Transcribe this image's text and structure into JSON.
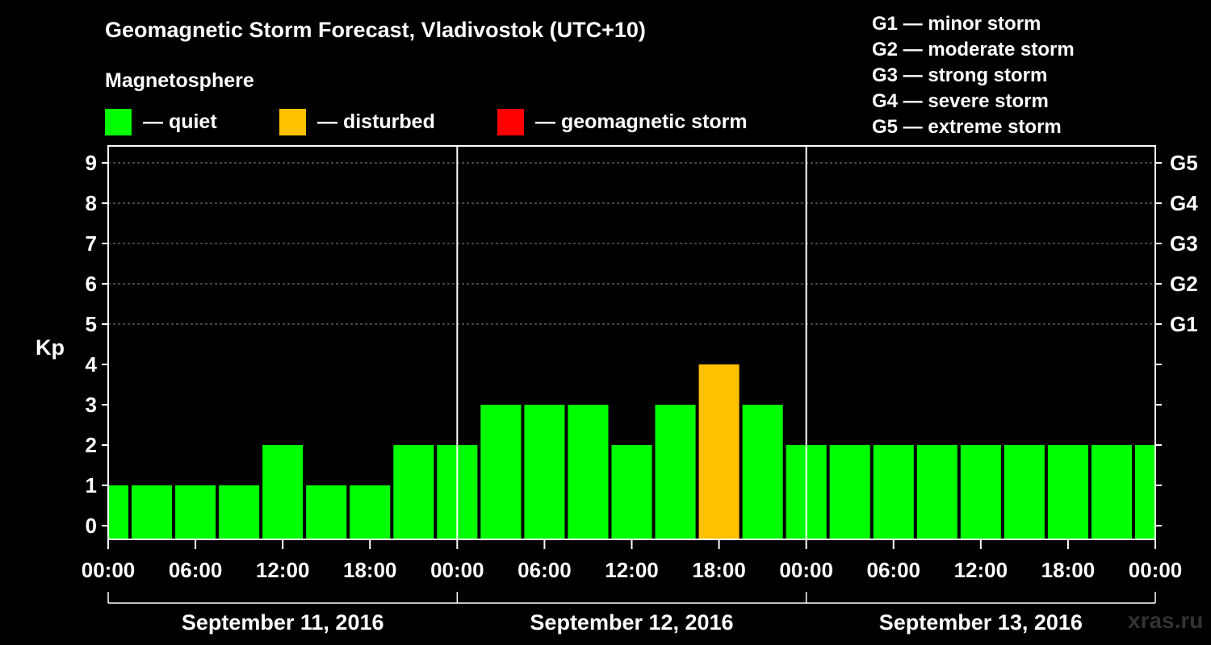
{
  "title": "Geomagnetic Storm Forecast, Vladivostok (UTC+10)",
  "subtitle": "Magnetosphere",
  "legend": [
    {
      "label": "— quiet",
      "color": "#00ff00"
    },
    {
      "label": "— disturbed",
      "color": "#ffc000"
    },
    {
      "label": "— geomagnetic storm",
      "color": "#ff0000"
    }
  ],
  "g_scale": [
    "G1 — minor storm",
    "G2 — moderate storm",
    "G3 — strong storm",
    "G4 — severe storm",
    "G5 — extreme storm"
  ],
  "watermark": "xras.ru",
  "chart_data": {
    "type": "bar",
    "ylabel": "Kp",
    "ylim": [
      0,
      9
    ],
    "yticks": [
      "0",
      "1",
      "2",
      "3",
      "4",
      "5",
      "6",
      "7",
      "8",
      "9"
    ],
    "right_ticks": [
      "G1",
      "G2",
      "G3",
      "G4",
      "G5"
    ],
    "x_tick_labels": [
      "00:00",
      "06:00",
      "12:00",
      "18:00",
      "00:00",
      "06:00",
      "12:00",
      "18:00",
      "00:00",
      "06:00",
      "12:00",
      "18:00",
      "00:00"
    ],
    "dates": [
      "September 11, 2016",
      "September 12, 2016",
      "September 13, 2016"
    ],
    "grid": "horizontal dashed at Kp 5–9",
    "bars": [
      {
        "start_hour": 0,
        "end_hour": 1.5,
        "value": 1,
        "status": "quiet"
      },
      {
        "start_hour": 1.5,
        "end_hour": 4.5,
        "value": 1,
        "status": "quiet"
      },
      {
        "start_hour": 4.5,
        "end_hour": 7.5,
        "value": 1,
        "status": "quiet"
      },
      {
        "start_hour": 7.5,
        "end_hour": 10.5,
        "value": 1,
        "status": "quiet"
      },
      {
        "start_hour": 10.5,
        "end_hour": 13.5,
        "value": 2,
        "status": "quiet"
      },
      {
        "start_hour": 13.5,
        "end_hour": 16.5,
        "value": 1,
        "status": "quiet"
      },
      {
        "start_hour": 16.5,
        "end_hour": 19.5,
        "value": 1,
        "status": "quiet"
      },
      {
        "start_hour": 19.5,
        "end_hour": 22.5,
        "value": 2,
        "status": "quiet"
      },
      {
        "start_hour": 22.5,
        "end_hour": 25.5,
        "value": 2,
        "status": "quiet"
      },
      {
        "start_hour": 25.5,
        "end_hour": 28.5,
        "value": 3,
        "status": "quiet"
      },
      {
        "start_hour": 28.5,
        "end_hour": 31.5,
        "value": 3,
        "status": "quiet"
      },
      {
        "start_hour": 31.5,
        "end_hour": 34.5,
        "value": 3,
        "status": "quiet"
      },
      {
        "start_hour": 34.5,
        "end_hour": 37.5,
        "value": 2,
        "status": "quiet"
      },
      {
        "start_hour": 37.5,
        "end_hour": 40.5,
        "value": 3,
        "status": "quiet"
      },
      {
        "start_hour": 40.5,
        "end_hour": 43.5,
        "value": 4,
        "status": "disturbed"
      },
      {
        "start_hour": 43.5,
        "end_hour": 46.5,
        "value": 3,
        "status": "quiet"
      },
      {
        "start_hour": 46.5,
        "end_hour": 49.5,
        "value": 2,
        "status": "quiet"
      },
      {
        "start_hour": 49.5,
        "end_hour": 52.5,
        "value": 2,
        "status": "quiet"
      },
      {
        "start_hour": 52.5,
        "end_hour": 55.5,
        "value": 2,
        "status": "quiet"
      },
      {
        "start_hour": 55.5,
        "end_hour": 58.5,
        "value": 2,
        "status": "quiet"
      },
      {
        "start_hour": 58.5,
        "end_hour": 61.5,
        "value": 2,
        "status": "quiet"
      },
      {
        "start_hour": 61.5,
        "end_hour": 64.5,
        "value": 2,
        "status": "quiet"
      },
      {
        "start_hour": 64.5,
        "end_hour": 67.5,
        "value": 2,
        "status": "quiet"
      },
      {
        "start_hour": 67.5,
        "end_hour": 70.5,
        "value": 2,
        "status": "quiet"
      },
      {
        "start_hour": 70.5,
        "end_hour": 72,
        "value": 2,
        "status": "quiet"
      }
    ],
    "xlim_hours": [
      0,
      72
    ],
    "status_colors": {
      "quiet": "#00ff00",
      "disturbed": "#ffc000",
      "storm": "#ff0000"
    }
  }
}
